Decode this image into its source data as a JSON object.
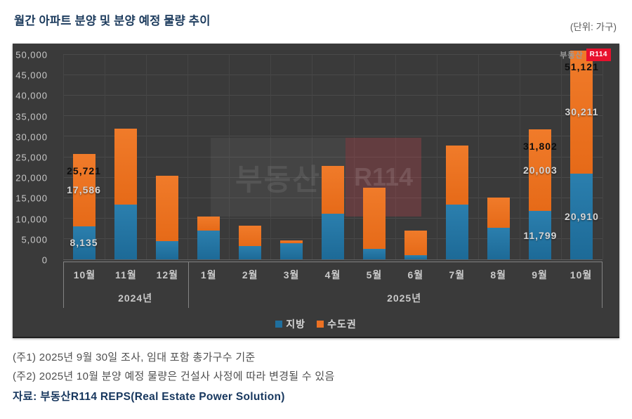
{
  "page": {
    "title": "월간 아파트 분양 및 분양 예정 물량 추이",
    "unit_label": "(단위: 가구)",
    "note1": "(주1) 2025년 9월 30일 조사, 임대 포함 총가구수 기준",
    "note2": "(주2) 2025년 10월 분양 예정 물량은 건설사 사정에 따라 변경될 수 있음",
    "source": "자료: 부동산R114 REPS(Real Estate Power Solution)"
  },
  "logo": {
    "prefix": "부동산",
    "box": "R114"
  },
  "watermark": {
    "prefix": "부동산",
    "box": "R114"
  },
  "colors": {
    "local_blue": "#1f6f9e",
    "metro_orange": "#ec7123",
    "panel_bg": "#3a3a3a",
    "gridline": "#4a4a4a",
    "brand_red": "#e8112d",
    "title_navy": "#17375e"
  },
  "chart_data": {
    "type": "bar",
    "stacked": true,
    "title": "월간 아파트 분양 및 분양 예정 물량 추이",
    "unit": "가구",
    "categories": [
      "10월",
      "11월",
      "12월",
      "1월",
      "2월",
      "3월",
      "4월",
      "5월",
      "6월",
      "7월",
      "8월",
      "9월",
      "10월"
    ],
    "year_groups": [
      {
        "label": "2024년",
        "span": 3
      },
      {
        "label": "2025년",
        "span": 10
      }
    ],
    "series": [
      {
        "name": "지방",
        "key": "local",
        "color": "#1f6f9e",
        "values": [
          8135,
          13400,
          4400,
          7100,
          3200,
          3900,
          11100,
          2500,
          1100,
          13400,
          7800,
          11799,
          20910
        ]
      },
      {
        "name": "수도권",
        "key": "metro",
        "color": "#ec7123",
        "values": [
          17586,
          18600,
          16000,
          3400,
          5000,
          700,
          11700,
          15000,
          6000,
          14400,
          7300,
          20003,
          30211
        ]
      }
    ],
    "labeled_indices": [
      0,
      11,
      12
    ],
    "labeled_totals": [
      25721,
      31802,
      51121
    ],
    "ylim": [
      0,
      50000
    ],
    "ytick_step": 5000,
    "grid": true,
    "legend_position": "bottom"
  }
}
